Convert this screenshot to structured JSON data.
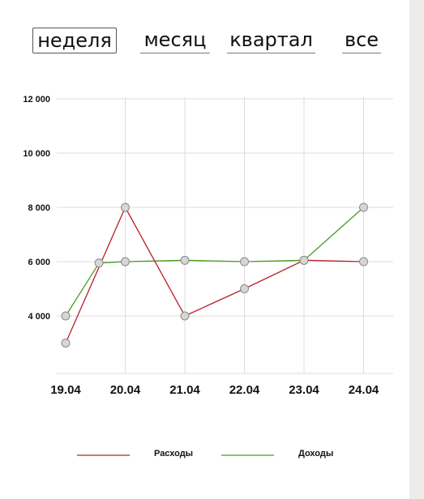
{
  "tabs": [
    {
      "label": "неделя",
      "active": true
    },
    {
      "label": "месяц",
      "active": false
    },
    {
      "label": "квартал",
      "active": false
    },
    {
      "label": "все",
      "active": false
    }
  ],
  "chart_data": {
    "type": "line",
    "x": [
      "19.04",
      "20.04",
      "21.04",
      "22.04",
      "23.04",
      "24.04"
    ],
    "y_ticks": [
      "12 000",
      "10 000",
      "8 000",
      "6 000",
      "4 000"
    ],
    "ylim": [
      2000,
      12000
    ],
    "grid": true,
    "legend_position": "bottom",
    "series": [
      {
        "name": "Расходы",
        "color": "#b5202a",
        "points": [
          {
            "x": 0,
            "y": 3000
          },
          {
            "x": 1,
            "y": 8000
          },
          {
            "x": 2,
            "y": 4000
          },
          {
            "x": 3,
            "y": 5000
          },
          {
            "x": 4,
            "y": 6050
          },
          {
            "x": 5,
            "y": 6000
          }
        ]
      },
      {
        "name": "Доходы",
        "color": "#4a9a1c",
        "points": [
          {
            "x": 0,
            "y": 4000
          },
          {
            "x": 0.56,
            "y": 5950
          },
          {
            "x": 1,
            "y": 6000
          },
          {
            "x": 2,
            "y": 6050
          },
          {
            "x": 3,
            "y": 6000
          },
          {
            "x": 4,
            "y": 6050
          },
          {
            "x": 5,
            "y": 8000
          }
        ]
      }
    ]
  }
}
